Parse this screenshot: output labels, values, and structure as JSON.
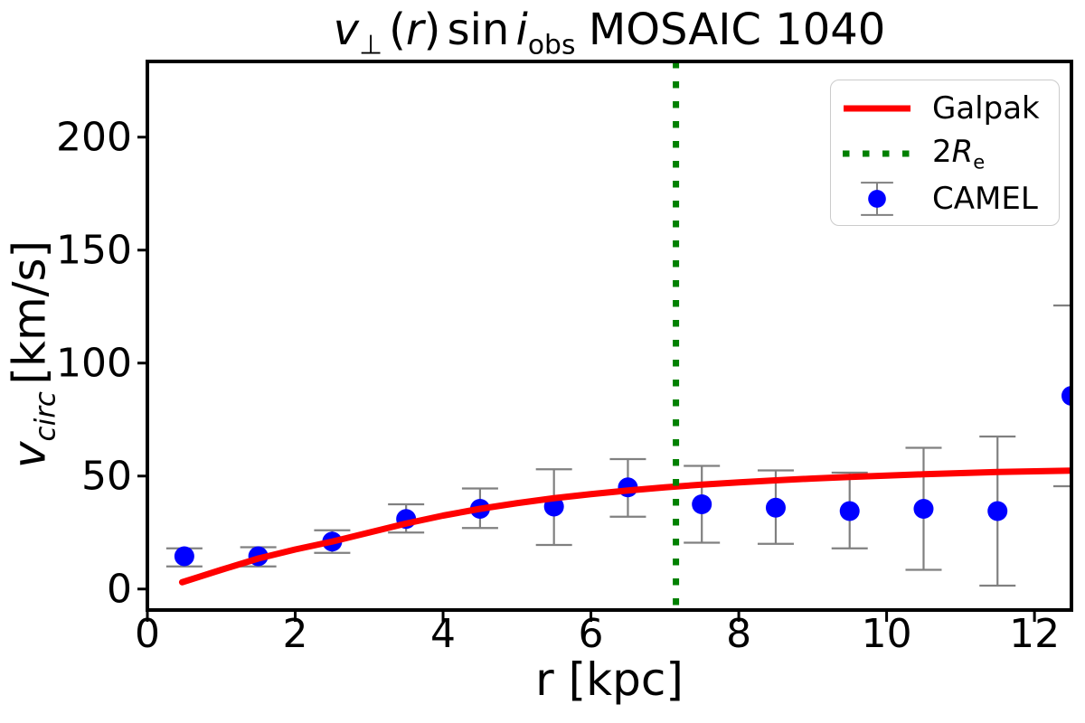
{
  "title": {
    "v": "v",
    "perp": "⊥",
    "lparen": "(",
    "r": "r",
    "rparen": ")",
    "sin": "sin",
    "i": "i",
    "obs": "obs",
    "name": "MOSAIC 1040"
  },
  "axes": {
    "xlabel": "r [kpc]",
    "ylabel_v": "v",
    "ylabel_sub": "circ",
    "ylabel_units": "[km/s]"
  },
  "legend": {
    "galpak": "Galpak",
    "re_prefix": "2",
    "re_R": "R",
    "re_sub": "e",
    "camel": "CAMEL"
  },
  "chart_data": {
    "type": "line+scatter",
    "title_text": "v_perp(r) sin i_obs MOSAIC 1040",
    "xlabel": "r [kpc]",
    "ylabel": "v_circ [km/s]",
    "xlim": [
      0,
      12.5
    ],
    "ylim": [
      -9.3,
      233.5
    ],
    "x_ticks": [
      0,
      2,
      4,
      6,
      8,
      10,
      12
    ],
    "y_ticks": [
      0,
      50,
      100,
      150,
      200
    ],
    "grid": false,
    "legend_position": "upper right",
    "re_line_x": 7.15,
    "colors": {
      "galpak": "#ff0000",
      "re_line": "#008000",
      "camel": "#0000ff",
      "error": "#808080",
      "axes": "#000000"
    },
    "series": [
      {
        "name": "Galpak",
        "type": "line",
        "x": [
          0.47,
          1.0,
          1.5,
          2.0,
          2.5,
          3.0,
          3.5,
          4.0,
          4.5,
          5.0,
          5.5,
          6.0,
          6.5,
          7.0,
          7.5,
          8.0,
          8.5,
          9.0,
          9.5,
          10.0,
          10.5,
          11.0,
          11.5,
          12.0,
          12.5
        ],
        "y": [
          3.0,
          8.5,
          13.5,
          17.5,
          21.0,
          25.0,
          29.0,
          32.5,
          35.5,
          38.0,
          40.2,
          42.0,
          43.6,
          45.0,
          46.2,
          47.2,
          48.1,
          48.9,
          49.6,
          50.2,
          50.8,
          51.3,
          51.8,
          52.1,
          52.4
        ]
      },
      {
        "name": "CAMEL",
        "type": "scatter_errorbar",
        "x": [
          0.5,
          1.5,
          2.5,
          3.5,
          4.5,
          5.5,
          6.5,
          7.5,
          8.5,
          9.5,
          10.5,
          11.5,
          12.5
        ],
        "y": [
          14.5,
          14.5,
          21.0,
          31.0,
          35.5,
          36.5,
          45.0,
          37.5,
          36.0,
          34.5,
          35.5,
          34.5,
          85.5
        ],
        "yerr_plus": [
          3.5,
          4.0,
          5.0,
          6.5,
          9.0,
          16.5,
          12.5,
          17.0,
          16.5,
          17.0,
          27.0,
          33.0,
          40.0
        ],
        "yerr_minus": [
          4.5,
          4.5,
          5.0,
          6.0,
          8.5,
          17.0,
          13.0,
          17.0,
          16.0,
          16.5,
          27.0,
          33.0,
          40.0
        ]
      }
    ]
  }
}
